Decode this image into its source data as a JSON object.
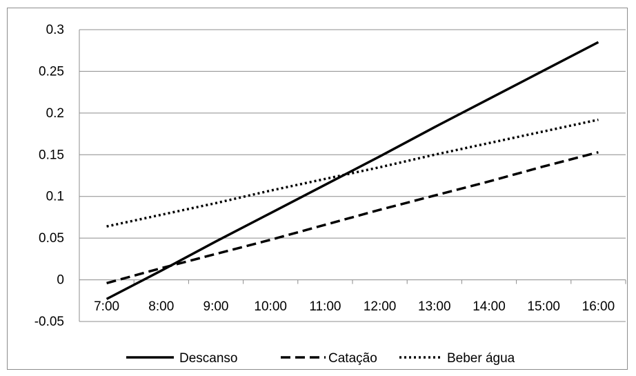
{
  "chart_data": {
    "type": "line",
    "title": "",
    "xlabel": "",
    "ylabel": "",
    "categories": [
      "7:00",
      "8:00",
      "9:00",
      "10:00",
      "11:00",
      "12:00",
      "13:00",
      "14:00",
      "15:00",
      "16:00"
    ],
    "ylim": [
      -0.05,
      0.3
    ],
    "yticks": [
      "-0.05",
      "0",
      "0.05",
      "0.1",
      "0.15",
      "0.2",
      "0.25",
      "0.3"
    ],
    "grid": true,
    "legend_position": "bottom",
    "series": [
      {
        "name": "Descanso",
        "style": "solid",
        "color": "#000000",
        "values": [
          -0.023,
          0.011,
          0.046,
          0.08,
          0.114,
          0.148,
          0.183,
          0.217,
          0.251,
          0.285
        ]
      },
      {
        "name": "Catação",
        "style": "dashed",
        "color": "#000000",
        "values": [
          -0.004,
          0.014,
          0.031,
          0.048,
          0.066,
          0.084,
          0.101,
          0.118,
          0.136,
          0.153
        ]
      },
      {
        "name": "Beber água",
        "style": "dotted",
        "color": "#000000",
        "values": [
          0.064,
          0.078,
          0.092,
          0.107,
          0.121,
          0.135,
          0.15,
          0.164,
          0.178,
          0.192
        ]
      }
    ]
  }
}
